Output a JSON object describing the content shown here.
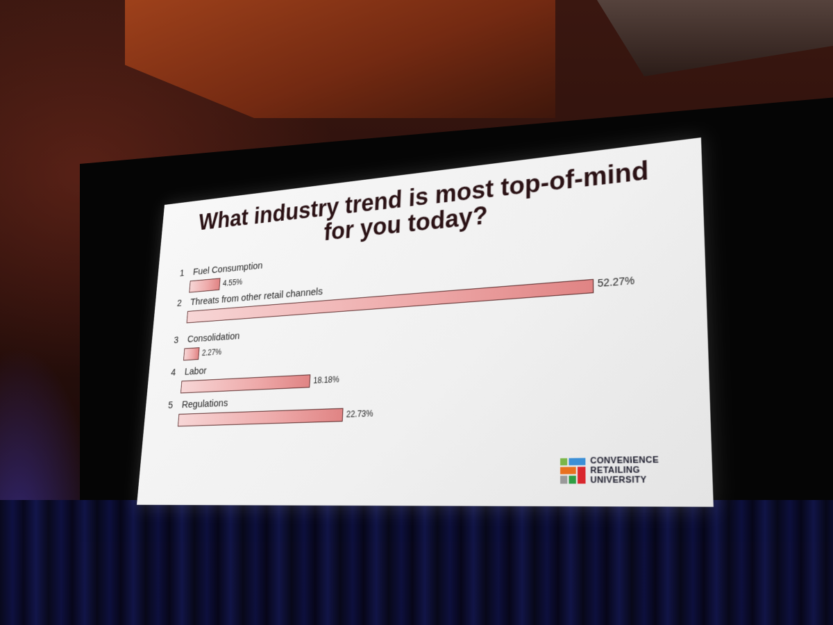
{
  "slide": {
    "title": "What industry trend is most top-of-mind for you today?",
    "items": [
      {
        "number": "1",
        "label": "Fuel Consumption",
        "value": 4.55,
        "value_label": "4.55%"
      },
      {
        "number": "2",
        "label": "Threats from other retail channels",
        "value": 52.27,
        "value_label": "52.27%"
      },
      {
        "number": "3",
        "label": "Consolidation",
        "value": 2.27,
        "value_label": "2.27%"
      },
      {
        "number": "4",
        "label": "Labor",
        "value": 18.18,
        "value_label": "18.18%"
      },
      {
        "number": "5",
        "label": "Regulations",
        "value": 22.73,
        "value_label": "22.73%"
      }
    ],
    "logo": {
      "line1": "CONVENIENCE",
      "line2": "RETAILING",
      "line3": "UNIVERSITY",
      "colors": [
        "#7ab648",
        "#3b8fd6",
        "#e8711f",
        "#d9272e",
        "#9a9a9a",
        "#2f9e44"
      ]
    }
  },
  "colors": {
    "title": "#2a1114",
    "bar_fill": "#eeaaaa",
    "bar_border": "#5a2a2a"
  }
}
